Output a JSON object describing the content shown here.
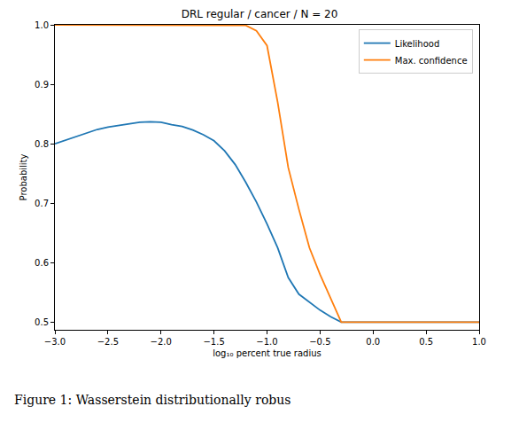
{
  "chart_data": {
    "type": "line",
    "title": "DRL regular / cancer / N = 20",
    "caption": "Figure 1: Wasserstein distributionally robus",
    "x_label": "log₁₀ percent true radius",
    "y_label": "Probability",
    "x": [
      -3.0,
      -2.9,
      -2.8,
      -2.7,
      -2.6,
      -2.5,
      -2.4,
      -2.3,
      -2.2,
      -2.1,
      -2.0,
      -1.9,
      -1.8,
      -1.7,
      -1.6,
      -1.5,
      -1.4,
      -1.3,
      -1.2,
      -1.1,
      -1.0,
      -0.9,
      -0.8,
      -0.7,
      -0.6,
      -0.5,
      -0.4,
      -0.3,
      -0.2,
      -0.1,
      0.0,
      0.1,
      0.2,
      0.3,
      0.4,
      0.5,
      0.6,
      0.7,
      0.8,
      0.9,
      1.0
    ],
    "series": [
      {
        "name": "Likelihood",
        "color": "#1f77b4",
        "values": [
          0.8,
          0.806,
          0.813,
          0.819,
          0.824,
          0.828,
          0.831,
          0.834,
          0.836,
          0.837,
          0.836,
          0.832,
          0.829,
          0.823,
          0.815,
          0.805,
          0.788,
          0.765,
          0.735,
          0.702,
          0.665,
          0.625,
          0.575,
          0.547,
          0.533,
          0.52,
          0.509,
          0.5,
          0.5,
          0.5,
          0.5,
          0.5,
          0.5,
          0.5,
          0.5,
          0.5,
          0.5,
          0.5,
          0.5,
          0.5,
          0.5
        ]
      },
      {
        "name": "Max. confidence",
        "color": "#ff7f0e",
        "values": [
          1.0,
          1.0,
          1.0,
          1.0,
          1.0,
          1.0,
          1.0,
          1.0,
          1.0,
          1.0,
          1.0,
          1.0,
          1.0,
          1.0,
          1.0,
          1.0,
          1.0,
          1.0,
          0.999,
          0.99,
          0.965,
          0.87,
          0.76,
          0.69,
          0.625,
          0.58,
          0.54,
          0.5,
          0.5,
          0.5,
          0.5,
          0.5,
          0.5,
          0.5,
          0.5,
          0.5,
          0.5,
          0.5,
          0.5,
          0.5,
          0.5
        ]
      }
    ],
    "xlim": [
      -3.0,
      1.0
    ],
    "xticks": [
      {
        "value": -3.0,
        "label": "−3.0"
      },
      {
        "value": -2.5,
        "label": "−2.5"
      },
      {
        "value": -2.0,
        "label": "−2.0"
      },
      {
        "value": -1.5,
        "label": "−1.5"
      },
      {
        "value": -1.0,
        "label": "−1.0"
      },
      {
        "value": -0.5,
        "label": "−0.5"
      },
      {
        "value": 0,
        "label": "0.0"
      },
      {
        "value": 0.5,
        "label": "0.5"
      },
      {
        "value": 1,
        "label": "1.0"
      }
    ],
    "ylim": [
      0.487,
      1.0
    ],
    "yticks": [
      0.5,
      0.6,
      0.7,
      0.8,
      0.9,
      {
        "value": 1,
        "label": "1.0"
      }
    ],
    "grid": false,
    "legend": "upper right"
  }
}
